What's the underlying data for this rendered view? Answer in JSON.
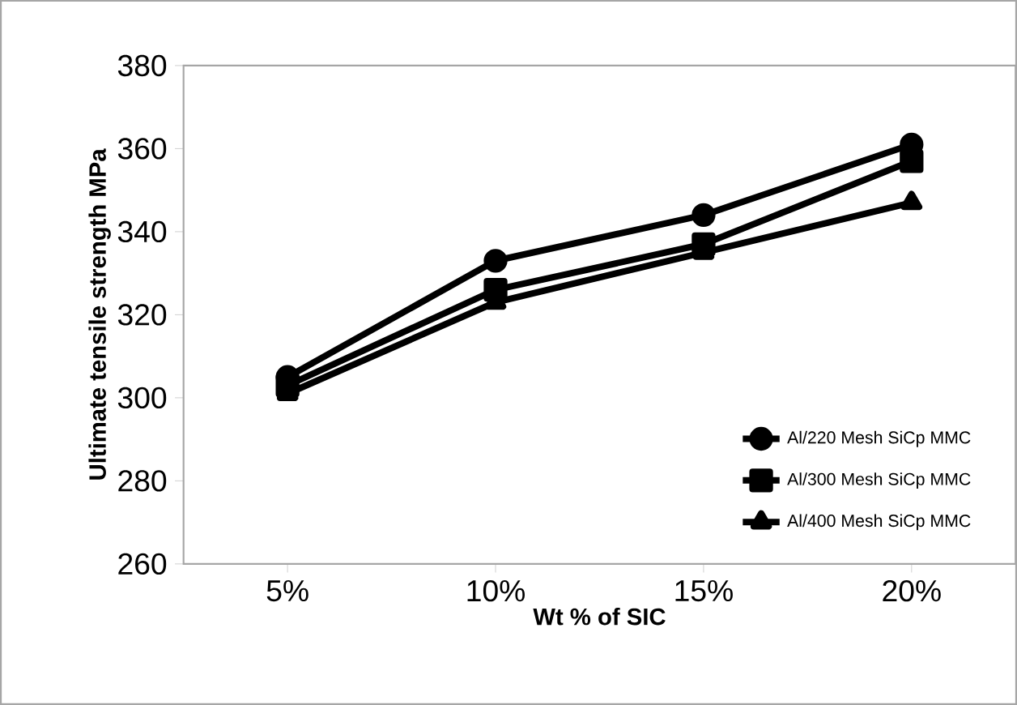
{
  "chart_data": {
    "type": "line",
    "xlabel": "Wt % of SIC",
    "ylabel": "Ultimate tensile strength  MPa",
    "categories": [
      "5%",
      "10%",
      "15%",
      "20%"
    ],
    "series": [
      {
        "name": "Al/220 Mesh SiCp MMC",
        "color": "#000000",
        "marker": "circle",
        "values": [
          305,
          333,
          344,
          361
        ]
      },
      {
        "name": "Al/300 Mesh SiCp MMC",
        "color": "#000000",
        "marker": "square",
        "values": [
          303,
          326,
          337,
          357
        ]
      },
      {
        "name": "Al/400 Mesh SiCp MMC",
        "color": "#000000",
        "marker": "triangle",
        "values": [
          301,
          323,
          335,
          347
        ]
      }
    ],
    "ylim": [
      260,
      380
    ],
    "yticks": [
      260,
      280,
      300,
      320,
      340,
      360,
      380
    ],
    "grid": false,
    "legend": "bottom right",
    "line_style": "solid"
  }
}
